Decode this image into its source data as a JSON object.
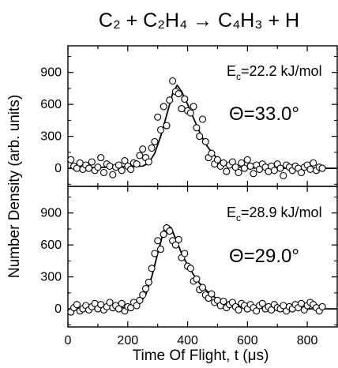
{
  "title": "C₂ + C₂H₄ → C₄H₃ + H",
  "xlabel": "Time Of Flight, t (μs)",
  "ylabel": "Number Density (arb. units)",
  "chart_data": [
    {
      "type": "scatter",
      "panel": "top",
      "annotation_energy": "E",
      "annotation_energy_sub": "c",
      "annotation_energy_value": "=22.2 kJ/mol",
      "annotation_angle": "Θ=33.0°",
      "xlim": [
        0,
        900
      ],
      "ylim": [
        -170,
        1150
      ],
      "xticks": [
        "0",
        "200",
        "400",
        "600",
        "800"
      ],
      "yticks": [
        "900",
        "600",
        "300",
        "0"
      ],
      "series": [
        {
          "style": "points",
          "x": [
            10,
            20,
            30,
            40,
            50,
            60,
            70,
            80,
            90,
            100,
            110,
            120,
            130,
            140,
            150,
            160,
            170,
            180,
            190,
            200,
            210,
            220,
            230,
            240,
            250,
            260,
            270,
            280,
            290,
            300,
            310,
            320,
            330,
            340,
            350,
            360,
            370,
            380,
            390,
            400,
            410,
            420,
            430,
            440,
            450,
            460,
            470,
            480,
            490,
            500,
            510,
            520,
            530,
            540,
            550,
            560,
            570,
            580,
            590,
            600,
            610,
            620,
            630,
            640,
            650,
            660,
            670,
            680,
            690,
            700,
            710,
            720,
            730,
            740,
            750,
            760,
            770,
            780,
            790,
            800,
            810,
            820,
            830,
            840,
            850
          ],
          "y": [
            80,
            20,
            0,
            50,
            -10,
            30,
            0,
            60,
            -20,
            10,
            100,
            -40,
            40,
            20,
            -60,
            10,
            30,
            -20,
            70,
            20,
            -10,
            50,
            40,
            120,
            180,
            100,
            60,
            190,
            250,
            480,
            360,
            580,
            400,
            640,
            820,
            720,
            700,
            560,
            650,
            540,
            520,
            580,
            380,
            300,
            460,
            250,
            100,
            140,
            40,
            80,
            20,
            50,
            -30,
            30,
            60,
            10,
            -40,
            50,
            0,
            80,
            20,
            -50,
            30,
            -10,
            40,
            10,
            -30,
            20,
            -20,
            40,
            0,
            -70,
            30,
            10,
            -20,
            20,
            0,
            -40,
            10,
            30,
            -10,
            50,
            -20,
            10,
            0
          ]
        },
        {
          "style": "fit",
          "x": [
            0,
            250,
            270,
            290,
            310,
            330,
            350,
            365,
            380,
            400,
            420,
            440,
            460,
            480,
            500,
            530,
            560,
            600,
            650,
            700,
            900
          ],
          "y": [
            0,
            20,
            50,
            140,
            300,
            500,
            700,
            780,
            720,
            600,
            470,
            340,
            230,
            150,
            90,
            40,
            15,
            5,
            0,
            0,
            0
          ]
        }
      ]
    },
    {
      "type": "scatter",
      "panel": "bottom",
      "annotation_energy": "E",
      "annotation_energy_sub": "c",
      "annotation_energy_value": "=28.9 kJ/mol",
      "annotation_angle": "Θ=29.0°",
      "xlim": [
        0,
        900
      ],
      "ylim": [
        -170,
        1150
      ],
      "xticks": [
        "0",
        "200",
        "400",
        "600",
        "800"
      ],
      "yticks": [
        "900",
        "600",
        "300",
        "0"
      ],
      "series": [
        {
          "style": "points",
          "x": [
            10,
            20,
            30,
            40,
            50,
            60,
            70,
            80,
            90,
            100,
            110,
            120,
            130,
            140,
            150,
            160,
            170,
            180,
            190,
            200,
            210,
            220,
            230,
            240,
            250,
            260,
            270,
            280,
            290,
            300,
            310,
            320,
            330,
            340,
            350,
            360,
            370,
            380,
            390,
            400,
            410,
            420,
            430,
            440,
            450,
            460,
            470,
            480,
            490,
            500,
            510,
            520,
            530,
            540,
            550,
            560,
            570,
            580,
            590,
            600,
            610,
            620,
            630,
            640,
            650,
            660,
            670,
            680,
            690,
            700,
            710,
            720,
            730,
            740,
            750,
            760,
            770,
            780,
            790,
            800,
            810,
            820,
            830,
            840,
            850
          ],
          "y": [
            -30,
            10,
            40,
            -20,
            0,
            30,
            -10,
            20,
            50,
            0,
            40,
            -10,
            20,
            60,
            10,
            30,
            0,
            50,
            -20,
            20,
            10,
            60,
            30,
            80,
            130,
            190,
            250,
            380,
            520,
            640,
            560,
            700,
            760,
            730,
            640,
            600,
            650,
            480,
            520,
            400,
            380,
            260,
            280,
            180,
            200,
            130,
            100,
            140,
            60,
            80,
            30,
            70,
            10,
            40,
            60,
            20,
            -10,
            50,
            30,
            0,
            40,
            10,
            -20,
            30,
            50,
            0,
            20,
            -10,
            40,
            10,
            0,
            30,
            -20,
            20,
            0,
            40,
            10,
            50,
            -10,
            30,
            60,
            40,
            10,
            -20,
            20
          ]
        },
        {
          "style": "fit",
          "x": [
            0,
            200,
            220,
            240,
            260,
            280,
            300,
            320,
            330,
            345,
            360,
            380,
            400,
            420,
            440,
            460,
            480,
            500,
            530,
            560,
            600,
            650,
            700,
            900
          ],
          "y": [
            0,
            10,
            20,
            50,
            130,
            300,
            520,
            730,
            790,
            760,
            660,
            520,
            410,
            320,
            240,
            180,
            130,
            90,
            50,
            25,
            10,
            5,
            0,
            0
          ]
        }
      ]
    }
  ]
}
